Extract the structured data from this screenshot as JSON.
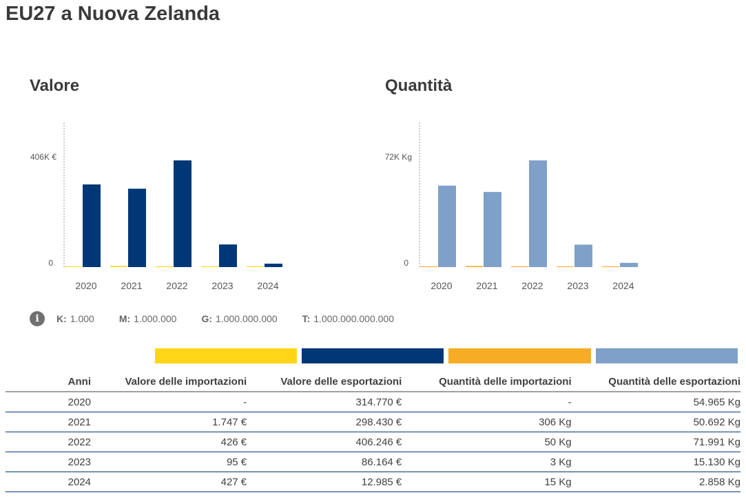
{
  "title": "EU27 a Nuova Zelanda",
  "colors": {
    "import_value": "#ffd617",
    "export_value": "#003776",
    "import_qty": "#f6ad25",
    "export_qty": "#7fa1c9"
  },
  "legend": {
    "icon": "info-icon",
    "items": [
      {
        "k": "K:",
        "v": "1.000"
      },
      {
        "k": "M:",
        "v": "1.000.000"
      },
      {
        "k": "G:",
        "v": "1.000.000.000"
      },
      {
        "k": "T:",
        "v": "1.000.000.000.000"
      }
    ]
  },
  "chart_data": [
    {
      "type": "bar",
      "title": "Valore",
      "categories": [
        "2020",
        "2021",
        "2022",
        "2023",
        "2024"
      ],
      "ytick_labels": [
        "0",
        "406K €"
      ],
      "ylim": [
        0,
        406246
      ],
      "series": [
        {
          "name": "Valore delle importazioni",
          "values": [
            0,
            1747,
            426,
            95,
            427
          ]
        },
        {
          "name": "Valore delle esportazioni",
          "values": [
            314770,
            298430,
            406246,
            86164,
            12985
          ]
        }
      ]
    },
    {
      "type": "bar",
      "title": "Quantità",
      "categories": [
        "2020",
        "2021",
        "2022",
        "2023",
        "2024"
      ],
      "ytick_labels": [
        "0",
        "72K Kg"
      ],
      "ylim": [
        0,
        71991
      ],
      "series": [
        {
          "name": "Quantità delle importazioni",
          "values": [
            0,
            306,
            50,
            3,
            15
          ]
        },
        {
          "name": "Quantità delle esportazioni",
          "values": [
            54965,
            50692,
            71991,
            15130,
            2858
          ]
        }
      ]
    }
  ],
  "table": {
    "headers": [
      "Anni",
      "Valore delle importazioni",
      "Valore delle esportazioni",
      "Quantità delle importazioni",
      "Quantità delle esportazioni"
    ],
    "rows": [
      [
        "2020",
        "-",
        "314.770 €",
        "-",
        "54.965 Kg"
      ],
      [
        "2021",
        "1.747 €",
        "298.430 €",
        "306 Kg",
        "50.692 Kg"
      ],
      [
        "2022",
        "426 €",
        "406.246 €",
        "50 Kg",
        "71.991 Kg"
      ],
      [
        "2023",
        "95 €",
        "86.164 €",
        "3 Kg",
        "15.130 Kg"
      ],
      [
        "2024",
        "427 €",
        "12.985 €",
        "15 Kg",
        "2.858 Kg"
      ]
    ]
  }
}
